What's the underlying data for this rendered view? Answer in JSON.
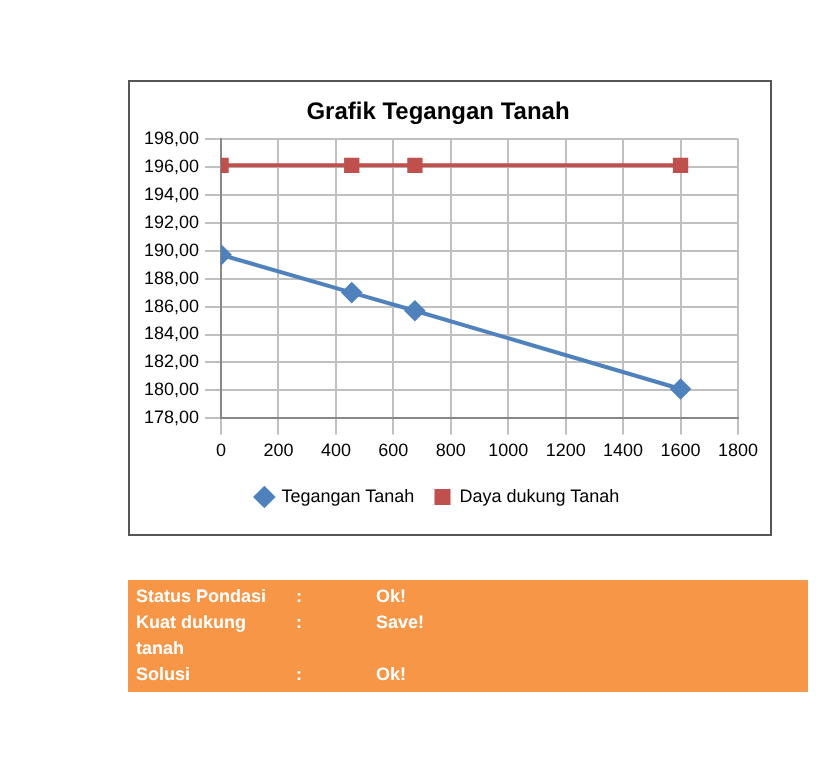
{
  "chart_data": {
    "type": "line",
    "title": "Grafik Tegangan Tanah",
    "x": [
      0,
      455,
      675,
      1600
    ],
    "series": [
      {
        "name": "Tegangan Tanah",
        "color": "#4f81bd",
        "marker": "diamond",
        "values": [
          189.7,
          187.0,
          185.7,
          180.1
        ]
      },
      {
        "name": "Daya dukung Tanah",
        "color": "#c0504d",
        "marker": "square",
        "values": [
          196.1,
          196.1,
          196.1,
          196.1
        ]
      }
    ],
    "xlim": [
      0,
      1800
    ],
    "xticks": [
      0,
      200,
      400,
      600,
      800,
      1000,
      1200,
      1400,
      1600,
      1800
    ],
    "ylim": [
      178,
      198
    ],
    "yticks": [
      {
        "value": 178,
        "label": "178,00"
      },
      {
        "value": 180,
        "label": "180,00"
      },
      {
        "value": 182,
        "label": "182,00"
      },
      {
        "value": 184,
        "label": "184,00"
      },
      {
        "value": 186,
        "label": "186,00"
      },
      {
        "value": 188,
        "label": "188,00"
      },
      {
        "value": 190,
        "label": "190,00"
      },
      {
        "value": 192,
        "label": "192,00"
      },
      {
        "value": 194,
        "label": "194,00"
      },
      {
        "value": 196,
        "label": "196,00"
      },
      {
        "value": 198,
        "label": "198,00"
      }
    ],
    "grid": true,
    "legend": "bottom",
    "annotations": [
      "Status Pondasi",
      ":",
      "Ok!",
      "Kuat dukung tanah",
      ":",
      "Save!",
      "Solusi",
      ":",
      "Ok!"
    ]
  }
}
